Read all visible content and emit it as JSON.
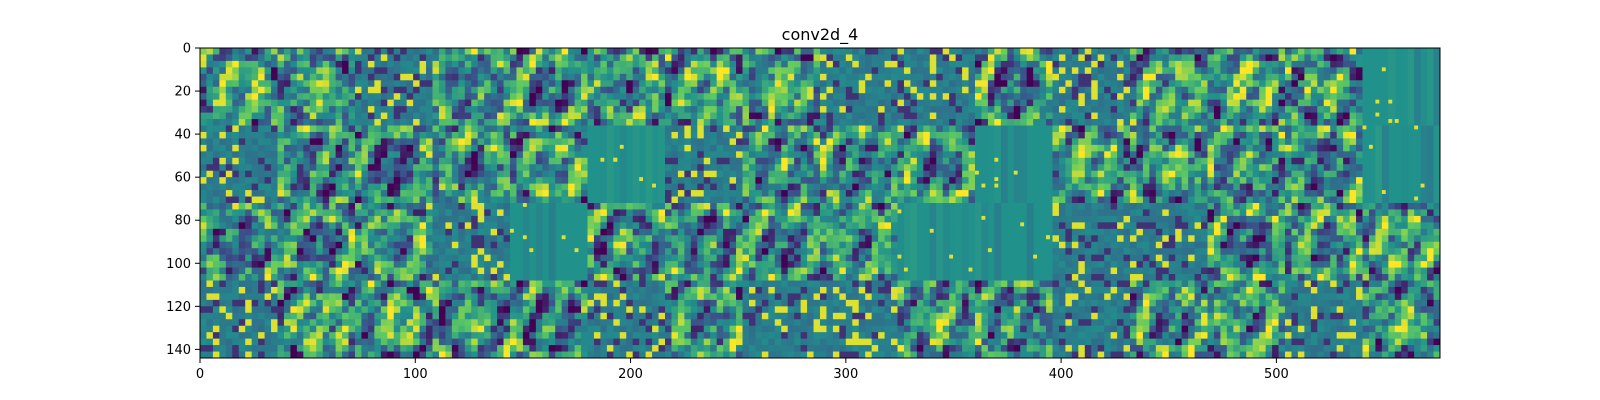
{
  "chart_data": {
    "type": "heatmap",
    "title": "conv2d_4",
    "xlabel": "",
    "ylabel": "",
    "grid": false,
    "colormap": "viridis",
    "colormap_stops": [
      "#440154",
      "#3b528b",
      "#21918c",
      "#5ec962",
      "#fde725"
    ],
    "background_value_color": "#21918c",
    "xlim": [
      0,
      576
    ],
    "ylim": [
      144,
      0
    ],
    "tile_grid": {
      "rows": 4,
      "cols": 16,
      "tile_size": 36
    },
    "uniform_tiles": [
      [
        0,
        15
      ],
      [
        1,
        5
      ],
      [
        1,
        10
      ],
      [
        1,
        15
      ],
      [
        2,
        4
      ],
      [
        2,
        9
      ],
      [
        2,
        10
      ]
    ],
    "sparse_tiles": [
      [
        0,
        2
      ],
      [
        0,
        8
      ],
      [
        0,
        9
      ],
      [
        0,
        11
      ],
      [
        1,
        0
      ],
      [
        1,
        6
      ],
      [
        2,
        3
      ],
      [
        2,
        11
      ],
      [
        2,
        12
      ],
      [
        3,
        0
      ],
      [
        3,
        5
      ],
      [
        3,
        7
      ],
      [
        3,
        8
      ],
      [
        3,
        11
      ],
      [
        3,
        14
      ]
    ],
    "xticks": [
      0,
      100,
      200,
      300,
      400,
      500
    ],
    "xtick_labels": [
      "0",
      "100",
      "200",
      "300",
      "400",
      "500"
    ],
    "yticks": [
      0,
      20,
      40,
      60,
      80,
      100,
      120,
      140
    ],
    "ytick_labels": [
      "0",
      "20",
      "40",
      "60",
      "80",
      "100",
      "120",
      "140"
    ]
  }
}
